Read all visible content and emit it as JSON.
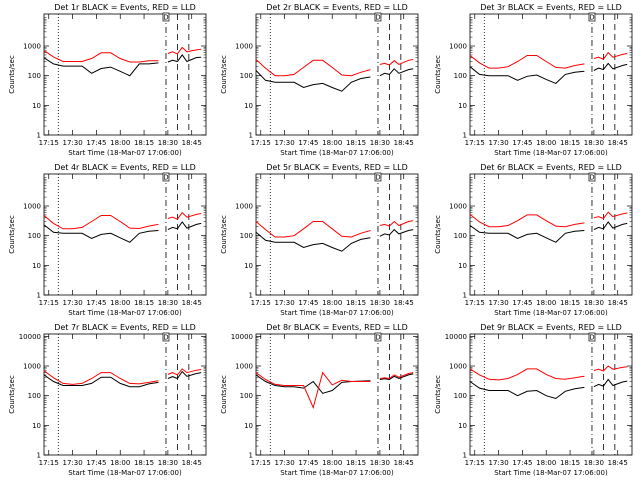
{
  "chart_data": [
    {
      "type": "line",
      "title": "Det 1r BLACK = Events, RED = LLD",
      "xlabel": "Start Time (18-Mar-07 17:06:00)",
      "ylabel": "Counts/sec",
      "yscale": "log",
      "ylim": [
        1,
        12000
      ],
      "xlim": [
        17.1,
        18.8
      ],
      "x_ticks": [
        "17:15",
        "17:30",
        "17:45",
        "18:00",
        "18:15",
        "18:30",
        "18:45"
      ],
      "y_ticks": [
        "1",
        "10",
        "100",
        "1000"
      ],
      "flag_label": "D",
      "x": [
        17.1,
        17.2,
        17.3,
        17.4,
        17.5,
        17.6,
        17.7,
        17.8,
        17.9,
        18.0,
        18.1,
        18.2,
        18.3,
        18.35,
        18.4,
        18.45,
        18.5,
        18.55,
        18.6,
        18.7,
        18.75
      ],
      "series": [
        {
          "name": "LLD",
          "color": "#ff0000",
          "values": [
            700,
            430,
            300,
            300,
            300,
            380,
            590,
            590,
            380,
            290,
            290,
            320,
            320,
            null,
            560,
            640,
            540,
            900,
            640,
            740,
            780
          ]
        },
        {
          "name": "Events",
          "color": "#000000",
          "values": [
            400,
            250,
            210,
            210,
            210,
            120,
            175,
            195,
            140,
            100,
            250,
            250,
            270,
            null,
            290,
            330,
            300,
            500,
            300,
            410,
            420
          ]
        }
      ],
      "v_lines": [
        {
          "x": 17.25,
          "style": "dotted"
        },
        {
          "x": 18.38,
          "style": "dashdot"
        },
        {
          "x": 18.5,
          "style": "dashed"
        },
        {
          "x": 18.62,
          "style": "dashed"
        }
      ]
    },
    {
      "type": "line",
      "title": "Det 2r BLACK = Events, RED = LLD",
      "xlabel": "Start Time (18-Mar-07 17:06:00)",
      "ylabel": "Counts/sec",
      "yscale": "log",
      "ylim": [
        1,
        12000
      ],
      "xlim": [
        17.1,
        18.8
      ],
      "x_ticks": [
        "17:15",
        "17:30",
        "17:45",
        "18:00",
        "18:15",
        "18:30",
        "18:45"
      ],
      "y_ticks": [
        "1",
        "10",
        "100",
        "1000"
      ],
      "flag_label": "D",
      "x": [
        17.1,
        17.2,
        17.3,
        17.4,
        17.5,
        17.6,
        17.7,
        17.8,
        17.9,
        18.0,
        18.1,
        18.2,
        18.3,
        18.35,
        18.4,
        18.45,
        18.5,
        18.55,
        18.6,
        18.7,
        18.75
      ],
      "series": [
        {
          "name": "LLD",
          "color": "#ff0000",
          "values": [
            350,
            180,
            100,
            100,
            110,
            190,
            330,
            330,
            190,
            105,
            100,
            130,
            160,
            null,
            240,
            260,
            230,
            320,
            240,
            330,
            350
          ]
        },
        {
          "name": "Events",
          "color": "#000000",
          "values": [
            150,
            70,
            60,
            60,
            60,
            40,
            50,
            55,
            40,
            30,
            60,
            80,
            90,
            null,
            100,
            120,
            110,
            170,
            120,
            160,
            170
          ]
        }
      ],
      "v_lines": [
        {
          "x": 17.25,
          "style": "dotted"
        },
        {
          "x": 18.38,
          "style": "dashdot"
        },
        {
          "x": 18.5,
          "style": "dashed"
        },
        {
          "x": 18.62,
          "style": "dashed"
        }
      ]
    },
    {
      "type": "line",
      "title": "Det 3r BLACK = Events, RED = LLD",
      "xlabel": "Start Time (18-Mar-07 17:06:00)",
      "ylabel": "Counts/sec",
      "yscale": "log",
      "ylim": [
        1,
        12000
      ],
      "xlim": [
        17.1,
        18.8
      ],
      "x_ticks": [
        "17:15",
        "17:30",
        "17:45",
        "18:00",
        "18:15",
        "18:30",
        "18:45"
      ],
      "y_ticks": [
        "1",
        "10",
        "100",
        "1000"
      ],
      "flag_label": "D",
      "x": [
        17.1,
        17.2,
        17.3,
        17.4,
        17.5,
        17.6,
        17.7,
        17.8,
        17.9,
        18.0,
        18.1,
        18.2,
        18.3,
        18.35,
        18.4,
        18.45,
        18.5,
        18.55,
        18.6,
        18.7,
        18.75
      ],
      "series": [
        {
          "name": "LLD",
          "color": "#ff0000",
          "values": [
            480,
            270,
            180,
            180,
            200,
            300,
            480,
            480,
            300,
            190,
            180,
            220,
            250,
            null,
            380,
            420,
            360,
            600,
            420,
            520,
            560
          ]
        },
        {
          "name": "Events",
          "color": "#000000",
          "values": [
            200,
            110,
            100,
            100,
            100,
            70,
            95,
            105,
            75,
            55,
            110,
            130,
            140,
            null,
            150,
            180,
            160,
            260,
            170,
            220,
            240
          ]
        }
      ],
      "v_lines": [
        {
          "x": 17.25,
          "style": "dotted"
        },
        {
          "x": 18.38,
          "style": "dashdot"
        },
        {
          "x": 18.5,
          "style": "dashed"
        },
        {
          "x": 18.62,
          "style": "dashed"
        }
      ]
    },
    {
      "type": "line",
      "title": "Det 4r BLACK = Events, RED = LLD",
      "xlabel": "Start Time (18-Mar-07 17:06:00)",
      "ylabel": "Counts/sec",
      "yscale": "log",
      "ylim": [
        1,
        12000
      ],
      "xlim": [
        17.1,
        18.8
      ],
      "x_ticks": [
        "17:15",
        "17:30",
        "17:45",
        "18:00",
        "18:15",
        "18:30",
        "18:45"
      ],
      "y_ticks": [
        "1",
        "10",
        "100",
        "1000"
      ],
      "flag_label": "D",
      "x": [
        17.1,
        17.2,
        17.3,
        17.4,
        17.5,
        17.6,
        17.7,
        17.8,
        17.9,
        18.0,
        18.1,
        18.2,
        18.3,
        18.35,
        18.4,
        18.45,
        18.5,
        18.55,
        18.6,
        18.7,
        18.75
      ],
      "series": [
        {
          "name": "LLD",
          "color": "#ff0000",
          "values": [
            480,
            260,
            170,
            170,
            190,
            300,
            480,
            480,
            300,
            180,
            175,
            210,
            240,
            null,
            380,
            420,
            360,
            600,
            420,
            520,
            560
          ]
        },
        {
          "name": "Events",
          "color": "#000000",
          "values": [
            230,
            130,
            120,
            120,
            120,
            80,
            110,
            120,
            85,
            60,
            120,
            140,
            150,
            null,
            160,
            190,
            170,
            290,
            180,
            240,
            260
          ]
        }
      ],
      "v_lines": [
        {
          "x": 17.25,
          "style": "dotted"
        },
        {
          "x": 18.38,
          "style": "dashdot"
        },
        {
          "x": 18.5,
          "style": "dashed"
        },
        {
          "x": 18.62,
          "style": "dashed"
        }
      ]
    },
    {
      "type": "line",
      "title": "Det 5r BLACK = Events, RED = LLD",
      "xlabel": "Start Time (18-Mar-07 17:06:00)",
      "ylabel": "Counts/sec",
      "yscale": "log",
      "ylim": [
        1,
        12000
      ],
      "xlim": [
        17.1,
        18.8
      ],
      "x_ticks": [
        "17:15",
        "17:30",
        "17:45",
        "18:00",
        "18:15",
        "18:30",
        "18:45"
      ],
      "y_ticks": [
        "1",
        "10",
        "100",
        "1000"
      ],
      "flag_label": "D",
      "x": [
        17.1,
        17.2,
        17.3,
        17.4,
        17.5,
        17.6,
        17.7,
        17.8,
        17.9,
        18.0,
        18.1,
        18.2,
        18.3,
        18.35,
        18.4,
        18.45,
        18.5,
        18.55,
        18.6,
        18.7,
        18.75
      ],
      "series": [
        {
          "name": "LLD",
          "color": "#ff0000",
          "values": [
            300,
            160,
            90,
            90,
            100,
            170,
            300,
            300,
            170,
            95,
            90,
            120,
            150,
            null,
            220,
            240,
            210,
            300,
            220,
            300,
            320
          ]
        },
        {
          "name": "Events",
          "color": "#000000",
          "values": [
            130,
            70,
            60,
            60,
            60,
            40,
            50,
            55,
            40,
            30,
            55,
            75,
            85,
            null,
            95,
            115,
            105,
            160,
            115,
            150,
            160
          ]
        }
      ],
      "v_lines": [
        {
          "x": 17.25,
          "style": "dotted"
        },
        {
          "x": 18.38,
          "style": "dashdot"
        },
        {
          "x": 18.5,
          "style": "dashed"
        },
        {
          "x": 18.62,
          "style": "dashed"
        }
      ]
    },
    {
      "type": "line",
      "title": "Det 6r BLACK = Events, RED = LLD",
      "xlabel": "Start Time (18-Mar-07 17:06:00)",
      "ylabel": "Counts/sec",
      "yscale": "log",
      "ylim": [
        1,
        12000
      ],
      "xlim": [
        17.1,
        18.8
      ],
      "x_ticks": [
        "17:15",
        "17:30",
        "17:45",
        "18:00",
        "18:15",
        "18:30",
        "18:45"
      ],
      "y_ticks": [
        "1",
        "10",
        "100",
        "1000"
      ],
      "flag_label": "D",
      "x": [
        17.1,
        17.2,
        17.3,
        17.4,
        17.5,
        17.6,
        17.7,
        17.8,
        17.9,
        18.0,
        18.1,
        18.2,
        18.3,
        18.35,
        18.4,
        18.45,
        18.5,
        18.55,
        18.6,
        18.7,
        18.75
      ],
      "series": [
        {
          "name": "LLD",
          "color": "#ff0000",
          "values": [
            520,
            290,
            200,
            200,
            220,
            320,
            500,
            500,
            320,
            210,
            200,
            240,
            270,
            null,
            400,
            440,
            380,
            620,
            440,
            540,
            580
          ]
        },
        {
          "name": "Events",
          "color": "#000000",
          "values": [
            220,
            130,
            120,
            120,
            120,
            80,
            110,
            120,
            85,
            60,
            120,
            140,
            150,
            null,
            160,
            190,
            170,
            290,
            180,
            240,
            260
          ]
        }
      ],
      "v_lines": [
        {
          "x": 17.25,
          "style": "dotted"
        },
        {
          "x": 18.38,
          "style": "dashdot"
        },
        {
          "x": 18.5,
          "style": "dashed"
        },
        {
          "x": 18.62,
          "style": "dashed"
        }
      ]
    },
    {
      "type": "line",
      "title": "Det 7r BLACK = Events, RED = LLD",
      "xlabel": "Start Time (18-Mar-07 17:06:00)",
      "ylabel": "Counts/sec",
      "yscale": "log",
      "ylim": [
        1,
        12000
      ],
      "xlim": [
        17.1,
        18.8
      ],
      "x_ticks": [
        "17:15",
        "17:30",
        "17:45",
        "18:00",
        "18:15",
        "18:30",
        "18:45"
      ],
      "y_ticks": [
        "1",
        "10",
        "100",
        "1000",
        "10000"
      ],
      "flag_label": "D",
      "x": [
        17.1,
        17.2,
        17.3,
        17.4,
        17.5,
        17.6,
        17.7,
        17.8,
        17.9,
        18.0,
        18.1,
        18.2,
        18.3,
        18.35,
        18.4,
        18.45,
        18.5,
        18.55,
        18.6,
        18.7,
        18.75
      ],
      "series": [
        {
          "name": "LLD",
          "color": "#ff0000",
          "values": [
            700,
            400,
            260,
            240,
            260,
            380,
            600,
            600,
            380,
            260,
            250,
            280,
            320,
            null,
            520,
            600,
            500,
            800,
            600,
            720,
            760
          ]
        },
        {
          "name": "Events",
          "color": "#000000",
          "values": [
            500,
            300,
            220,
            220,
            220,
            260,
            420,
            420,
            260,
            200,
            200,
            250,
            280,
            null,
            380,
            440,
            380,
            650,
            450,
            560,
            600
          ]
        }
      ],
      "v_lines": [
        {
          "x": 17.25,
          "style": "dotted"
        },
        {
          "x": 18.38,
          "style": "dashdot"
        },
        {
          "x": 18.5,
          "style": "dashed"
        },
        {
          "x": 18.62,
          "style": "dashed"
        }
      ]
    },
    {
      "type": "line",
      "title": "Det 8r BLACK = Events, RED = LLD",
      "xlabel": "Start Time (18-Mar-07 17:06:00)",
      "ylabel": "Counts/sec",
      "yscale": "log",
      "ylim": [
        1,
        12000
      ],
      "xlim": [
        17.1,
        18.8
      ],
      "x_ticks": [
        "17:15",
        "17:30",
        "17:45",
        "18:00",
        "18:15",
        "18:30",
        "18:45"
      ],
      "y_ticks": [
        "1",
        "10",
        "100",
        "1000",
        "10000"
      ],
      "flag_label": "D",
      "x": [
        17.1,
        17.2,
        17.3,
        17.4,
        17.5,
        17.6,
        17.7,
        17.8,
        17.9,
        18.0,
        18.1,
        18.2,
        18.3,
        18.35,
        18.4,
        18.45,
        18.5,
        18.55,
        18.6,
        18.7,
        18.75
      ],
      "series": [
        {
          "name": "LLD",
          "color": "#ff0000",
          "values": [
            600,
            350,
            240,
            220,
            220,
            220,
            40,
            600,
            230,
            330,
            300,
            300,
            300,
            null,
            380,
            400,
            380,
            500,
            420,
            560,
            600
          ]
        },
        {
          "name": "Events",
          "color": "#000000",
          "values": [
            500,
            300,
            220,
            200,
            200,
            180,
            300,
            120,
            150,
            280,
            300,
            310,
            320,
            null,
            350,
            370,
            350,
            450,
            380,
            500,
            540
          ]
        }
      ],
      "v_lines": [
        {
          "x": 17.25,
          "style": "dotted"
        },
        {
          "x": 18.38,
          "style": "dashdot"
        },
        {
          "x": 18.5,
          "style": "dashed"
        },
        {
          "x": 18.62,
          "style": "dashed"
        }
      ]
    },
    {
      "type": "line",
      "title": "Det 9r BLACK = Events, RED = LLD",
      "xlabel": "Start Time (18-Mar-07 17:06:00)",
      "ylabel": "Counts/sec",
      "yscale": "log",
      "ylim": [
        1,
        12000
      ],
      "xlim": [
        17.1,
        18.8
      ],
      "x_ticks": [
        "17:15",
        "17:30",
        "17:45",
        "18:00",
        "18:15",
        "18:30",
        "18:45"
      ],
      "y_ticks": [
        "1",
        "10",
        "100",
        "1000",
        "10000"
      ],
      "flag_label": "D",
      "x": [
        17.1,
        17.2,
        17.3,
        17.4,
        17.5,
        17.6,
        17.7,
        17.8,
        17.9,
        18.0,
        18.1,
        18.2,
        18.3,
        18.35,
        18.4,
        18.45,
        18.5,
        18.55,
        18.6,
        18.7,
        18.75
      ],
      "series": [
        {
          "name": "LLD",
          "color": "#ff0000",
          "values": [
            800,
            500,
            360,
            340,
            380,
            520,
            800,
            800,
            520,
            380,
            360,
            400,
            450,
            null,
            700,
            780,
            680,
            1000,
            780,
            900,
            950
          ]
        },
        {
          "name": "Events",
          "color": "#000000",
          "values": [
            300,
            180,
            150,
            150,
            150,
            100,
            140,
            150,
            100,
            80,
            140,
            170,
            190,
            null,
            200,
            240,
            210,
            350,
            220,
            290,
            310
          ]
        }
      ],
      "v_lines": [
        {
          "x": 17.25,
          "style": "dotted"
        },
        {
          "x": 18.38,
          "style": "dashdot"
        },
        {
          "x": 18.5,
          "style": "dashed"
        },
        {
          "x": 18.62,
          "style": "dashed"
        }
      ]
    }
  ]
}
